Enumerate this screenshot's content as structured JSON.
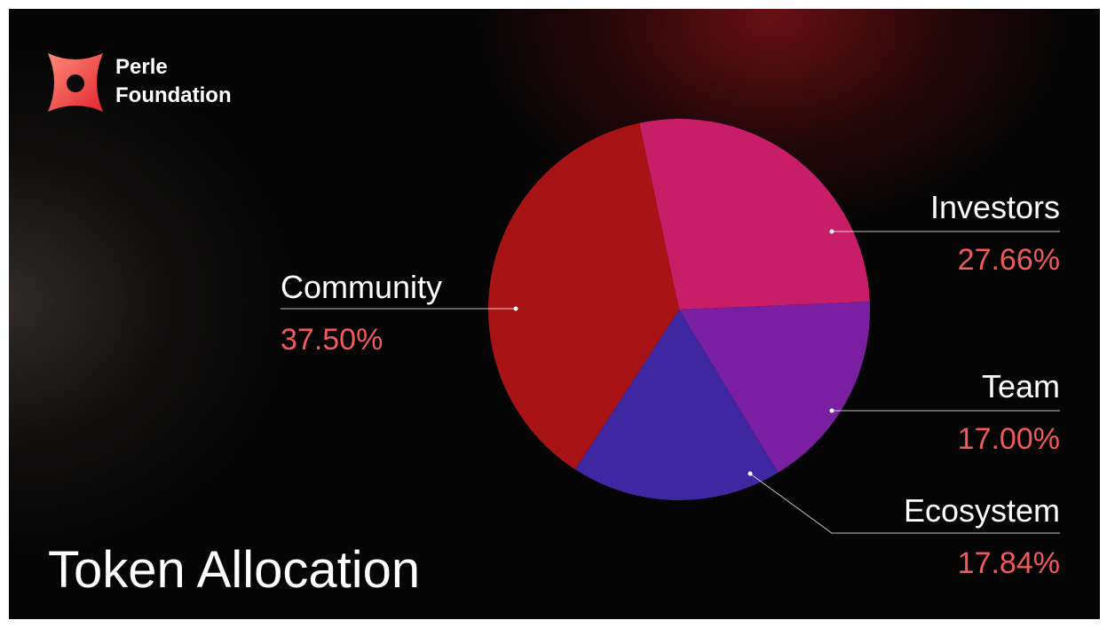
{
  "brand": {
    "line1": "Perle",
    "line2": "Foundation",
    "logo": "perle-foundation-logo"
  },
  "colors": {
    "accent": "#ef5a5a",
    "background": "#050505"
  },
  "chart_data": {
    "type": "pie",
    "title": "Token Allocation",
    "slices": [
      {
        "label": "Investors",
        "value_label": "27.66%",
        "value": 27.66,
        "color": "#c81e68"
      },
      {
        "label": "Team",
        "value_label": "17.00%",
        "value": 17.0,
        "color": "#7b1fa2"
      },
      {
        "label": "Ecosystem",
        "value_label": "17.84%",
        "value": 17.84,
        "color": "#3f27a1"
      },
      {
        "label": "Community",
        "value_label": "37.50%",
        "value": 37.5,
        "color": "#a81316"
      }
    ]
  }
}
